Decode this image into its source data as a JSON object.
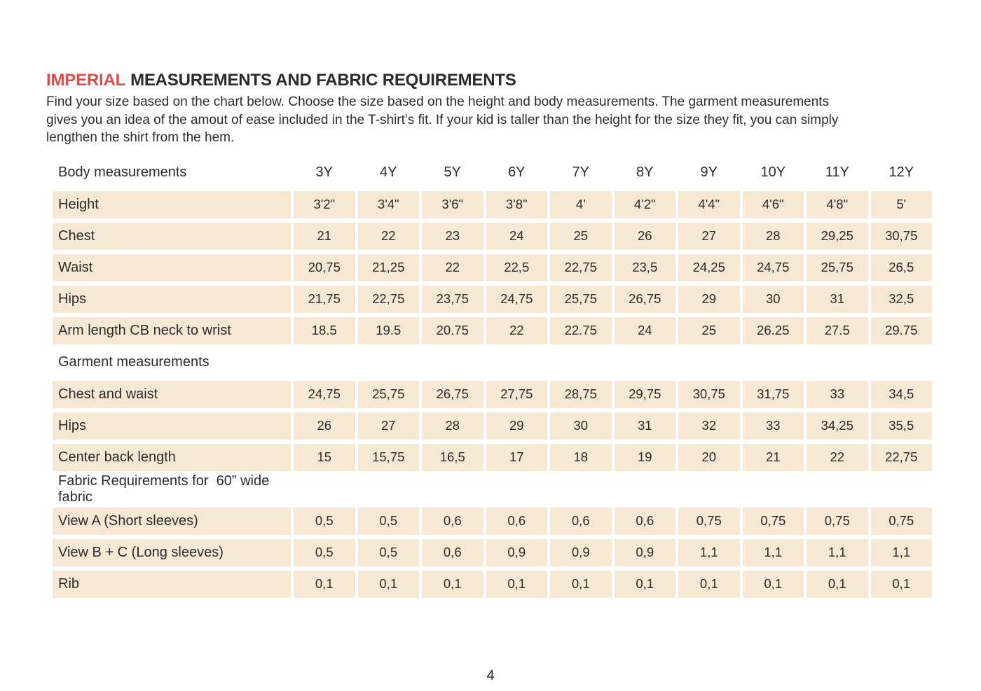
{
  "header": {
    "title_accent": "IMPERIAL",
    "title_rest": "MEASUREMENTS AND FABRIC REQUIREMENTS",
    "intro_lines": [
      "Find your size based on the chart below. Choose the size based on the height and body measurements. The garment measurements",
      "gives you an idea of the amout of ease included in the T-shirt’s fit. If your kid is taller than the height for the size they fit, you can simply",
      "lengthen the shirt from the hem."
    ]
  },
  "table": {
    "sizes": [
      "3Y",
      "4Y",
      "5Y",
      "6Y",
      "7Y",
      "8Y",
      "9Y",
      "10Y",
      "11Y",
      "12Y"
    ],
    "sections": [
      {
        "header": "Body measurements",
        "show_sizes": true,
        "rows": [
          {
            "label": "Height",
            "values": [
              "3'2\"",
              "3'4\"",
              "3'6\"",
              "3'8\"",
              "4'",
              "4'2\"",
              "4'4\"",
              "4'6\"",
              "4'8\"",
              "5'"
            ]
          },
          {
            "label": "Chest",
            "values": [
              "21",
              "22",
              "23",
              "24",
              "25",
              "26",
              "27",
              "28",
              "29,25",
              "30,75"
            ]
          },
          {
            "label": "Waist",
            "values": [
              "20,75",
              "21,25",
              "22",
              "22,5",
              "22,75",
              "23,5",
              "24,25",
              "24,75",
              "25,75",
              "26,5"
            ]
          },
          {
            "label": "Hips",
            "values": [
              "21,75",
              "22,75",
              "23,75",
              "24,75",
              "25,75",
              "26,75",
              "29",
              "30",
              "31",
              "32,5"
            ]
          },
          {
            "label": "Arm length CB neck to wrist",
            "values": [
              "18.5",
              "19.5",
              "20.75",
              "22",
              "22.75",
              "24",
              "25",
              "26.25",
              "27.5",
              "29.75"
            ]
          }
        ]
      },
      {
        "header": "Garment measurements",
        "show_sizes": false,
        "rows": [
          {
            "label": "Chest and waist",
            "values": [
              "24,75",
              "25,75",
              "26,75",
              "27,75",
              "28,75",
              "29,75",
              "30,75",
              "31,75",
              "33",
              "34,5"
            ]
          },
          {
            "label": "Hips",
            "values": [
              "26",
              "27",
              "28",
              "29",
              "30",
              "31",
              "32",
              "33",
              "34,25",
              "35,5"
            ]
          },
          {
            "label": "Center back length",
            "values": [
              "15",
              "15,75",
              "16,5",
              "17",
              "18",
              "19",
              "20",
              "21",
              "22",
              "22,75"
            ]
          }
        ]
      },
      {
        "header": "Fabric Requirements for  60” wide fabric",
        "show_sizes": false,
        "rows": [
          {
            "label": "View A (Short sleeves)",
            "values": [
              "0,5",
              "0,5",
              "0,6",
              "0,6",
              "0,6",
              "0,6",
              "0,75",
              "0,75",
              "0,75",
              "0,75"
            ]
          },
          {
            "label": "View B + C (Long sleeves)",
            "values": [
              "0,5",
              "0,5",
              "0,6",
              "0,9",
              "0,9",
              "0,9",
              "1,1",
              "1,1",
              "1,1",
              "1,1"
            ]
          },
          {
            "label": "Rib",
            "values": [
              "0,1",
              "0,1",
              "0,1",
              "0,1",
              "0,1",
              "0,1",
              "0,1",
              "0,1",
              "0,1",
              "0,1"
            ]
          }
        ]
      }
    ]
  },
  "footer": {
    "page_number": "4"
  },
  "colors": {
    "accent_red": "#d94f4c",
    "cell_beige": "#f7e8d4",
    "text": "#2b2b2b"
  }
}
